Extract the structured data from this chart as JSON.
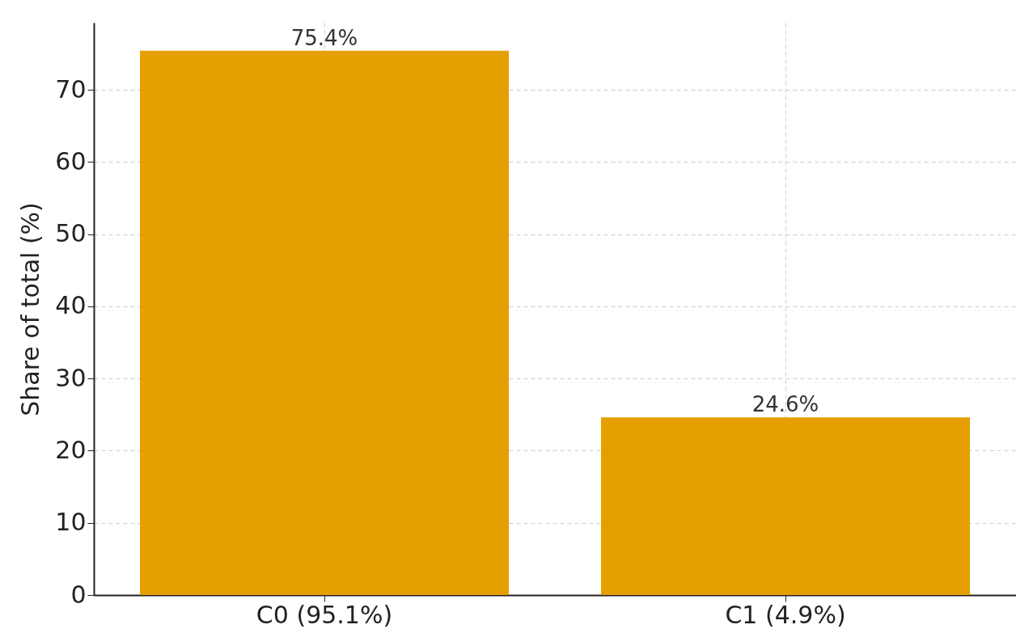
{
  "chart_data": {
    "type": "bar",
    "ylabel": "Share of total (%)",
    "categories": [
      "C0 (95.1%)",
      "C1 (4.9%)"
    ],
    "values": [
      75.4,
      24.6
    ],
    "value_labels": [
      "75.4%",
      "24.6%"
    ],
    "color": "#e69f00",
    "ylim": [
      0,
      79.3
    ],
    "yticks": [
      0,
      10,
      20,
      30,
      40,
      50,
      60,
      70
    ],
    "grid": true
  }
}
